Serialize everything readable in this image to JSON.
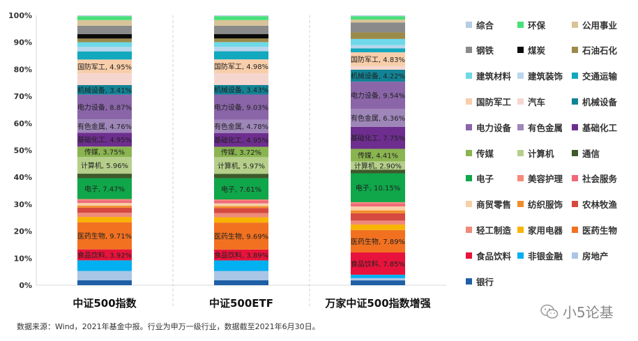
{
  "chart_data": {
    "type": "bar",
    "stacked": true,
    "normalized": true,
    "categories": [
      "中证500指数",
      "中证500ETF",
      "万家中证500指数增强"
    ],
    "y_ticks": [
      "0%",
      "10%",
      "20%",
      "30%",
      "40%",
      "50%",
      "60%",
      "70%",
      "80%",
      "90%",
      "100%"
    ],
    "ylim": [
      0,
      100
    ],
    "grid": false,
    "legend_position": "right",
    "series": [
      {
        "name": "银行",
        "color": "#1f5fa6",
        "values": [
          1.8,
          1.8,
          1.7
        ]
      },
      {
        "name": "房地产",
        "color": "#a9c6e6",
        "values": [
          3.3,
          3.3,
          0.8
        ]
      },
      {
        "name": "非银金融",
        "color": "#00b0f0",
        "values": [
          3.8,
          3.8,
          1.2
        ]
      },
      {
        "name": "食品饮料",
        "color": "#e8133c",
        "values": [
          3.92,
          3.89,
          7.85
        ]
      },
      {
        "name": "医药生物",
        "color": "#f27121",
        "values": [
          9.71,
          9.69,
          7.89
        ]
      },
      {
        "name": "家用电器",
        "color": "#f8b400",
        "values": [
          1.9,
          1.9,
          1.9
        ]
      },
      {
        "name": "轻工制造",
        "color": "#ee8a7a",
        "values": [
          1.5,
          1.5,
          1.4
        ]
      },
      {
        "name": "农林牧渔",
        "color": "#d6493f",
        "values": [
          1.8,
          1.8,
          2.6
        ]
      },
      {
        "name": "纺织服饰",
        "color": "#f28c28",
        "values": [
          0.7,
          0.7,
          1.0
        ]
      },
      {
        "name": "商贸零售",
        "color": "#f8cfa6",
        "values": [
          1.0,
          1.0,
          1.4
        ]
      },
      {
        "name": "社会服务",
        "color": "#f06a7a",
        "values": [
          0.9,
          0.9,
          1.0
        ]
      },
      {
        "name": "美容护理",
        "color": "#f58a7a",
        "values": [
          0.5,
          0.5,
          0.5
        ]
      },
      {
        "name": "电子",
        "color": "#10a64a",
        "values": [
          7.47,
          7.61,
          10.15
        ]
      },
      {
        "name": "通信",
        "color": "#3e5a2a",
        "values": [
          1.6,
          1.6,
          1.3
        ]
      },
      {
        "name": "计算机",
        "color": "#b5cf8a",
        "values": [
          5.96,
          5.97,
          2.9
        ]
      },
      {
        "name": "传媒",
        "color": "#8ab450",
        "values": [
          3.75,
          3.72,
          4.41
        ]
      },
      {
        "name": "基础化工",
        "color": "#6e2e8f",
        "values": [
          4.95,
          4.95,
          7.75
        ]
      },
      {
        "name": "有色金属",
        "color": "#9e86b8",
        "values": [
          4.76,
          4.78,
          6.36
        ]
      },
      {
        "name": "电力设备",
        "color": "#8a65a8",
        "values": [
          8.87,
          9.03,
          9.54
        ]
      },
      {
        "name": "机械设备",
        "color": "#128395",
        "values": [
          3.41,
          3.43,
          4.22
        ]
      },
      {
        "name": "汽车",
        "color": "#f5d6cf",
        "values": [
          4.2,
          4.2,
          1.3
        ]
      },
      {
        "name": "国防军工",
        "color": "#f8ceaa",
        "values": [
          4.95,
          4.98,
          4.83
        ]
      },
      {
        "name": "交通运输",
        "color": "#12a8bd",
        "values": [
          2.9,
          2.9,
          1.4
        ]
      },
      {
        "name": "建筑装饰",
        "color": "#b8d6ec",
        "values": [
          1.6,
          1.6,
          1.1
        ]
      },
      {
        "name": "建筑材料",
        "color": "#6ed8e8",
        "values": [
          1.7,
          1.7,
          2.2
        ]
      },
      {
        "name": "石油石化",
        "color": "#9c8a4a",
        "values": [
          1.3,
          1.3,
          2.3
        ]
      },
      {
        "name": "煤炭",
        "color": "#0a0a0a",
        "values": [
          1.6,
          1.6,
          0.0
        ]
      },
      {
        "name": "钢铁",
        "color": "#8a8a8a",
        "values": [
          3.0,
          3.0,
          3.5
        ]
      },
      {
        "name": "公用事业",
        "color": "#d8c498",
        "values": [
          2.0,
          2.0,
          1.0
        ]
      },
      {
        "name": "环保",
        "color": "#48e07a",
        "values": [
          1.4,
          1.4,
          1.2
        ]
      },
      {
        "name": "综合",
        "color": "#b6cde2",
        "values": [
          0.3,
          0.3,
          0.3
        ]
      }
    ],
    "data_labels": [
      [
        "食品饮料, 3.92%",
        "医药生物, 9.71%",
        "电子, 7.47%",
        "计算机, 5.96%",
        "传媒, 3.75%",
        "基础化工, 4.95%",
        "有色金属, 4.76%",
        "电力设备, 8.87%",
        "机械设备, 3.41%",
        "国防军工, 4.95%"
      ],
      [
        "食品饮料, 3.89%",
        "医药生物, 9.69%",
        "电子, 7.61%",
        "计算机, 5.97%",
        "传媒, 3.72%",
        "基础化工, 4.95%",
        "有色金属, 4.78%",
        "电力设备, 9.03%",
        "机械设备, 3.43%",
        "国防军工, 4.98%"
      ],
      [
        "食品饮料, 7.85%",
        "医药生物, 7.89%",
        "电子, 10.15%",
        "计算机, 2.90%",
        "传媒, 4.41%",
        "基础化工, 7.75%",
        "有色金属, 6.36%",
        "电力设备, 9.54%",
        "机械设备, 4.22%",
        "国防军工, 4.83%"
      ]
    ],
    "labeled_series": [
      "食品饮料",
      "医药生物",
      "电子",
      "计算机",
      "传媒",
      "基础化工",
      "有色金属",
      "电力设备",
      "机械设备",
      "国防军工"
    ],
    "legend_order": [
      "综合",
      "环保",
      "公用事业",
      "钢铁",
      "煤炭",
      "石油石化",
      "建筑材料",
      "建筑装饰",
      "交通运输",
      "国防军工",
      "汽车",
      "机械设备",
      "电力设备",
      "有色金属",
      "基础化工",
      "传媒",
      "计算机",
      "通信",
      "电子",
      "美容护理",
      "社会服务",
      "商贸零售",
      "纺织服饰",
      "农林牧渔",
      "轻工制造",
      "家用电器",
      "医药生物",
      "食品饮料",
      "非银金融",
      "房地产",
      "银行"
    ]
  },
  "source_note": "数据来源：Wind，2021年基金中报。行业为申万一级行业，数据截至2021年6月30日。",
  "watermark": {
    "text": "小5论基",
    "icon": "wechat-icon"
  }
}
